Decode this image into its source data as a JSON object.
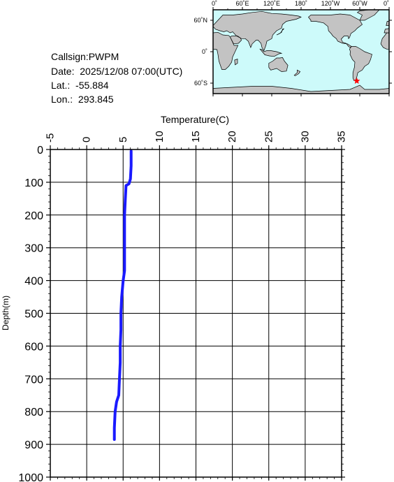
{
  "station": {
    "callsign_label": "Callsign:",
    "callsign": "PWPM",
    "date_label": "Date:",
    "date": "2025/12/08 07:00(UTC)",
    "lat_label": "Lat.:",
    "lat": "-55.884",
    "lon_label": "Lon.:",
    "lon": "293.845"
  },
  "map": {
    "lon_ticks": [
      "0˚",
      "60˚E",
      "120˚E",
      "180˚",
      "120˚W",
      "60˚W",
      "0˚"
    ],
    "lat_ticks": [
      "60˚N",
      "0˚",
      "60˚S"
    ],
    "ocean_color": "#cdfafa",
    "land_color": "#c3c3c3",
    "marker_color": "#ff0000",
    "marker_lon": 293.845,
    "marker_lat": -55.884
  },
  "chart_data": {
    "type": "line",
    "title": "",
    "xlabel": "Temperature(C)",
    "ylabel": "Depth(m)",
    "xlim": [
      -5,
      35
    ],
    "ylim": [
      0,
      1000
    ],
    "x_ticks": [
      "-5",
      "0",
      "5",
      "10",
      "15",
      "20",
      "25",
      "30",
      "35"
    ],
    "y_ticks": [
      "0",
      "100",
      "200",
      "300",
      "400",
      "500",
      "600",
      "700",
      "800",
      "900",
      "1000"
    ],
    "grid": true,
    "line_color": "#1a1aff",
    "series": [
      {
        "depth": [
          5,
          50,
          90,
          105,
          110,
          150,
          200,
          250,
          300,
          370,
          400,
          450,
          500,
          550,
          600,
          650,
          700,
          750,
          770,
          800,
          850,
          885
        ],
        "temperature": [
          6.1,
          6.1,
          6.0,
          5.8,
          5.4,
          5.3,
          5.2,
          5.2,
          5.2,
          5.2,
          5.0,
          4.8,
          4.7,
          4.7,
          4.6,
          4.6,
          4.5,
          4.4,
          4.1,
          3.9,
          3.8,
          3.8
        ]
      }
    ]
  }
}
